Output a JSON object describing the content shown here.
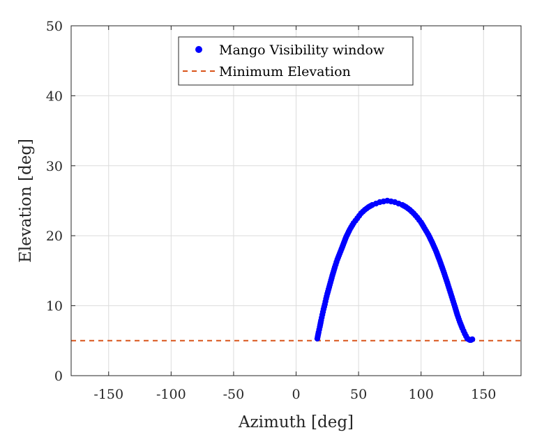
{
  "chart_data": {
    "type": "scatter",
    "title": "",
    "xlabel": "Azimuth [deg]",
    "ylabel": "Elevation [deg]",
    "xlim": [
      -180,
      180
    ],
    "ylim": [
      0,
      50
    ],
    "xticks": [
      -150,
      -100,
      -50,
      0,
      50,
      100,
      150
    ],
    "yticks": [
      0,
      10,
      20,
      30,
      40,
      50
    ],
    "x_tick_labels": [
      "-150",
      "-100",
      "-50",
      "0",
      "50",
      "100",
      "150"
    ],
    "y_tick_labels": [
      "0",
      "10",
      "20",
      "30",
      "40",
      "50"
    ],
    "grid": true,
    "legend_position": "top-center",
    "series": [
      {
        "name": "Mango Visibility window",
        "kind": "scatter",
        "color": "#0000ff",
        "x": [
          17,
          18,
          19,
          20,
          21,
          22,
          23,
          24,
          25,
          27,
          29,
          31,
          33,
          35,
          37,
          40,
          43,
          46,
          49,
          52,
          55,
          58,
          61,
          64,
          67,
          70,
          73,
          76,
          79,
          82,
          85,
          88,
          91,
          94,
          97,
          100,
          103,
          106,
          109,
          112,
          115,
          118,
          121,
          124,
          127,
          129,
          131,
          133,
          135,
          137,
          138,
          139,
          140,
          141
        ],
        "y": [
          5.3,
          6.2,
          7.0,
          7.9,
          8.7,
          9.5,
          10.2,
          11.0,
          11.7,
          13.0,
          14.3,
          15.5,
          16.6,
          17.5,
          18.4,
          19.8,
          20.9,
          21.8,
          22.5,
          23.2,
          23.7,
          24.1,
          24.4,
          24.6,
          24.8,
          24.9,
          25.0,
          24.9,
          24.8,
          24.6,
          24.4,
          24.1,
          23.7,
          23.2,
          22.6,
          21.9,
          21.0,
          20.1,
          19.0,
          17.8,
          16.4,
          14.9,
          13.3,
          11.6,
          9.9,
          8.7,
          7.7,
          6.8,
          6.0,
          5.3,
          5.2,
          5.1,
          5.1,
          5.2
        ]
      },
      {
        "name": "Minimum Elevation",
        "kind": "hline",
        "color": "#d95319",
        "y": 5
      }
    ]
  }
}
